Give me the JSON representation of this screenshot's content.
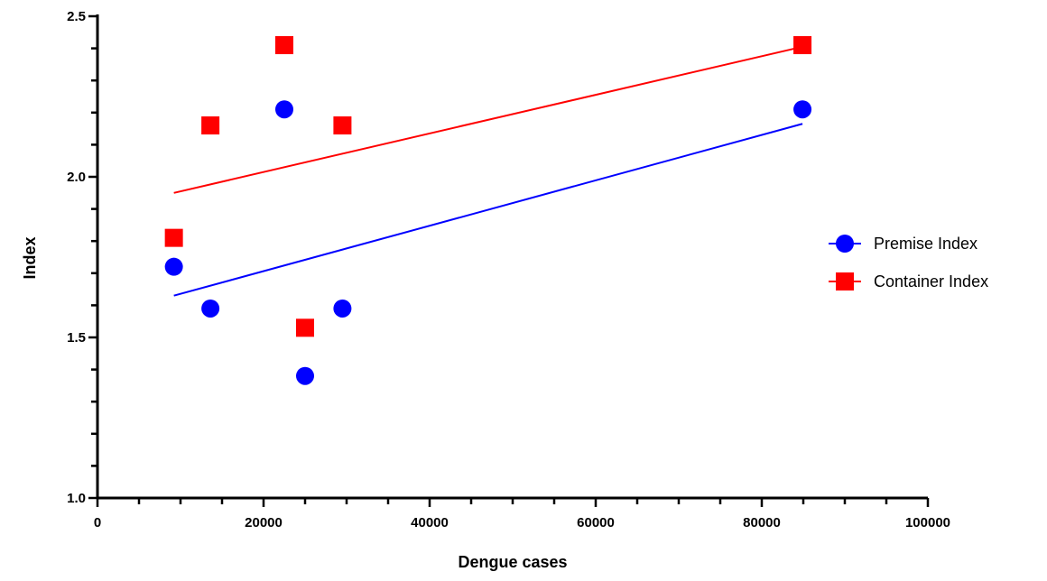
{
  "chart_data": {
    "type": "scatter",
    "xlabel": "Dengue cases",
    "ylabel": "Index",
    "xlim": [
      0,
      100000
    ],
    "ylim": [
      1.0,
      2.5
    ],
    "x_ticks": [
      0,
      20000,
      40000,
      60000,
      80000,
      100000
    ],
    "y_ticks": [
      1.0,
      1.5,
      2.0,
      2.5
    ],
    "y_tick_labels": [
      "1.0",
      "1.5",
      "2.0",
      "2.5"
    ],
    "legend_position": "right",
    "grid": false,
    "series": [
      {
        "name": "Premise Index",
        "marker": "circle",
        "color": "#0000ff",
        "points": [
          {
            "x": 9200,
            "y": 1.72
          },
          {
            "x": 13600,
            "y": 1.59
          },
          {
            "x": 22500,
            "y": 2.21
          },
          {
            "x": 25000,
            "y": 1.38
          },
          {
            "x": 29500,
            "y": 1.59
          },
          {
            "x": 84900,
            "y": 2.21
          }
        ],
        "trendline": [
          {
            "x": 9200,
            "y": 1.63
          },
          {
            "x": 84900,
            "y": 2.165
          }
        ]
      },
      {
        "name": "Container Index",
        "marker": "square",
        "color": "#ff0000",
        "points": [
          {
            "x": 9200,
            "y": 1.81
          },
          {
            "x": 13600,
            "y": 2.16
          },
          {
            "x": 22500,
            "y": 2.41
          },
          {
            "x": 25000,
            "y": 1.53
          },
          {
            "x": 29500,
            "y": 2.16
          },
          {
            "x": 84900,
            "y": 2.41
          }
        ],
        "trendline": [
          {
            "x": 9200,
            "y": 1.95
          },
          {
            "x": 84900,
            "y": 2.405
          }
        ]
      }
    ]
  }
}
